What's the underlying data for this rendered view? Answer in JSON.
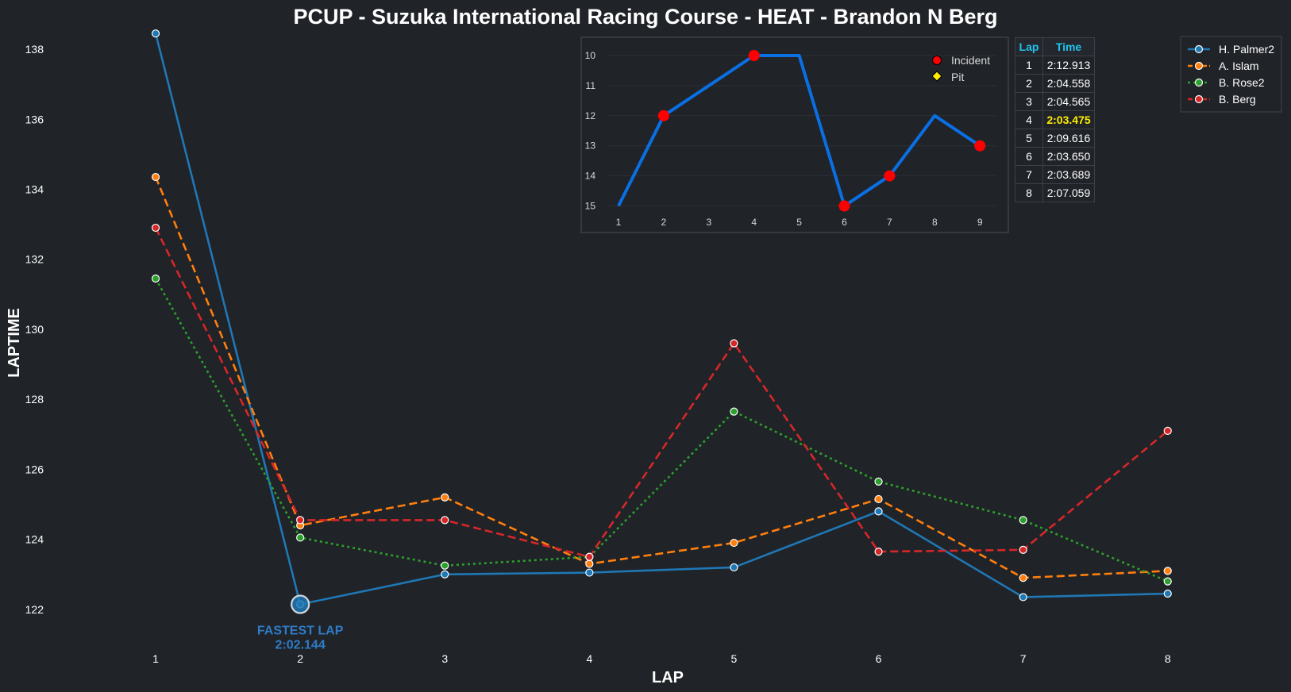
{
  "chart_data": [
    {
      "type": "line",
      "title": "PCUP - Suzuka International Racing Course - HEAT - Brandon N Berg",
      "xlabel": "LAP",
      "ylabel": "LAPTIME",
      "categories": [
        1,
        2,
        3,
        4,
        5,
        6,
        7,
        8
      ],
      "xlim": [
        0.5,
        8.6
      ],
      "ylim": [
        121.0,
        138.5
      ],
      "yticks": [
        122,
        124,
        126,
        128,
        130,
        132,
        134,
        136,
        138
      ],
      "legend_position": "top-right",
      "series": [
        {
          "name": "H. Palmer2",
          "color": "#1f77b4",
          "style": "solid",
          "values": [
            138.45,
            122.144,
            123.0,
            123.05,
            123.2,
            124.8,
            122.35,
            122.45
          ]
        },
        {
          "name": "A. Islam",
          "color": "#ff7f0e",
          "style": "dashed",
          "values": [
            134.35,
            124.4,
            125.2,
            123.3,
            123.9,
            125.15,
            122.9,
            123.1
          ]
        },
        {
          "name": "B. Rose2",
          "color": "#2ca02c",
          "style": "dotted",
          "values": [
            131.45,
            124.05,
            123.25,
            123.5,
            127.65,
            125.65,
            124.55,
            122.8
          ]
        },
        {
          "name": "B. Berg",
          "color": "#d62728",
          "style": "dashed",
          "values": [
            132.9,
            124.55,
            124.55,
            123.5,
            129.6,
            123.65,
            123.7,
            127.1
          ]
        }
      ],
      "annotation": {
        "lap": 2,
        "label": "FASTEST LAP",
        "value": "2:02.144"
      }
    },
    {
      "type": "line",
      "title": "",
      "categories": [
        1,
        2,
        3,
        4,
        5,
        6,
        7,
        8,
        9
      ],
      "values": [
        15,
        12,
        11,
        10,
        10,
        15,
        14,
        12,
        13
      ],
      "ylim": [
        15.4,
        9.6
      ],
      "yticks": [
        10,
        11,
        12,
        13,
        14,
        15
      ],
      "line_color": "#0a6fe3",
      "incidents": [
        2,
        4,
        6,
        7,
        9
      ],
      "pits": [],
      "legend": [
        {
          "label": "Incident",
          "color": "#ff0000"
        },
        {
          "label": "Pit",
          "color": "#ffee00"
        }
      ]
    }
  ],
  "lap_table": {
    "headers": [
      "Lap",
      "Time"
    ],
    "rows": [
      {
        "lap": "1",
        "time": "2:12.913"
      },
      {
        "lap": "2",
        "time": "2:04.558"
      },
      {
        "lap": "3",
        "time": "2:04.565"
      },
      {
        "lap": "4",
        "time": "2:03.475",
        "best": true
      },
      {
        "lap": "5",
        "time": "2:09.616"
      },
      {
        "lap": "6",
        "time": "2:03.650"
      },
      {
        "lap": "7",
        "time": "2:03.689"
      },
      {
        "lap": "8",
        "time": "2:07.059"
      }
    ]
  },
  "colors": {
    "background": "#202328",
    "accent": "#20c4ee",
    "best_lap": "#ffee00"
  }
}
